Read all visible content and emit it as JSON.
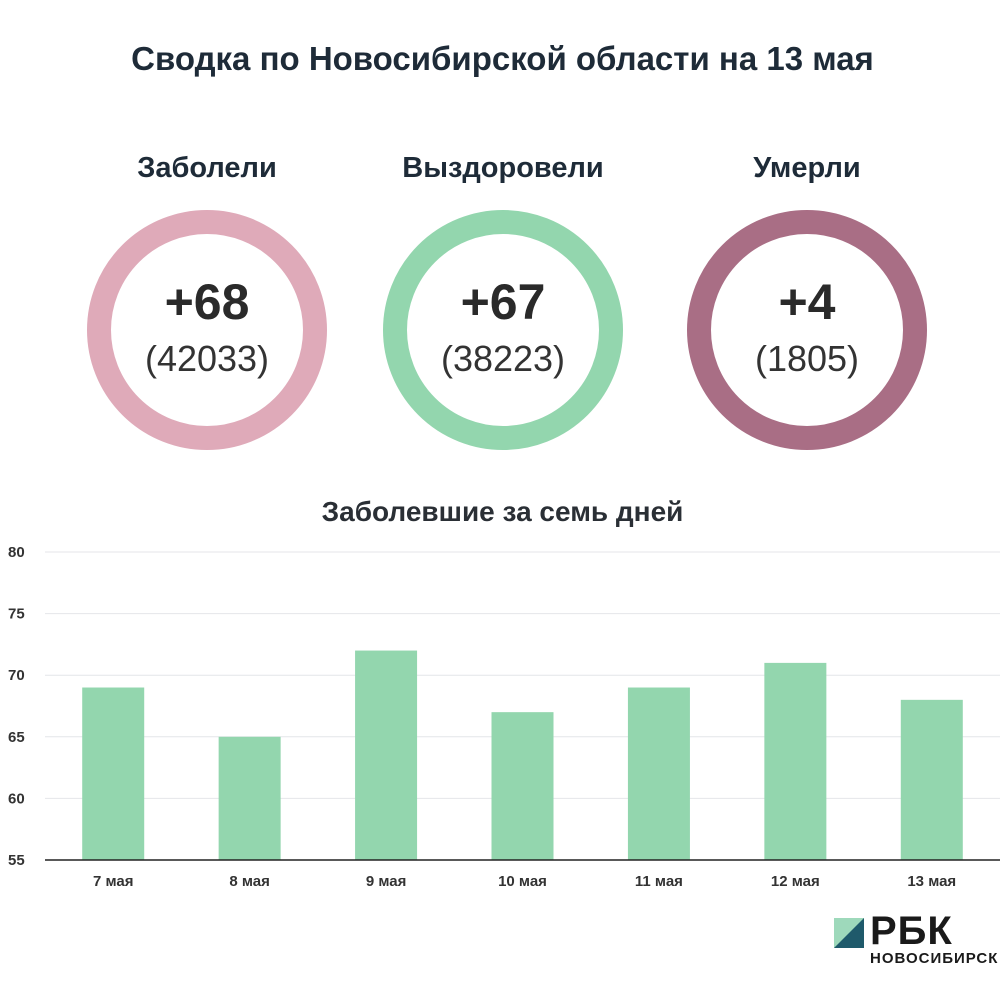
{
  "title": "Сводка по Новосибирской области на 13 мая",
  "stats": [
    {
      "label": "Заболели",
      "delta": "+68",
      "total": "(42033)",
      "color": "#dfaab9"
    },
    {
      "label": "Выздоровели",
      "delta": "+67",
      "total": "(38223)",
      "color": "#93d6ae"
    },
    {
      "label": "Умерли",
      "delta": "+4",
      "total": "(1805)",
      "color": "#a96e85"
    }
  ],
  "chart_data": {
    "type": "bar",
    "title": "Заболевшие за семь дней",
    "categories": [
      "7 мая",
      "8 мая",
      "9 мая",
      "10 мая",
      "11 мая",
      "12 мая",
      "13 мая"
    ],
    "values": [
      69,
      65,
      72,
      67,
      69,
      71,
      68
    ],
    "ylim": [
      55,
      80
    ],
    "yticks": [
      "55",
      "60",
      "65",
      "70",
      "75",
      "80"
    ],
    "grid": true,
    "bar_color": "#93d6ae"
  },
  "logo": {
    "word": "РБК",
    "sub": "НОВОСИБИРСК",
    "colors": [
      "#9ed9bb",
      "#1f5a6b"
    ]
  }
}
